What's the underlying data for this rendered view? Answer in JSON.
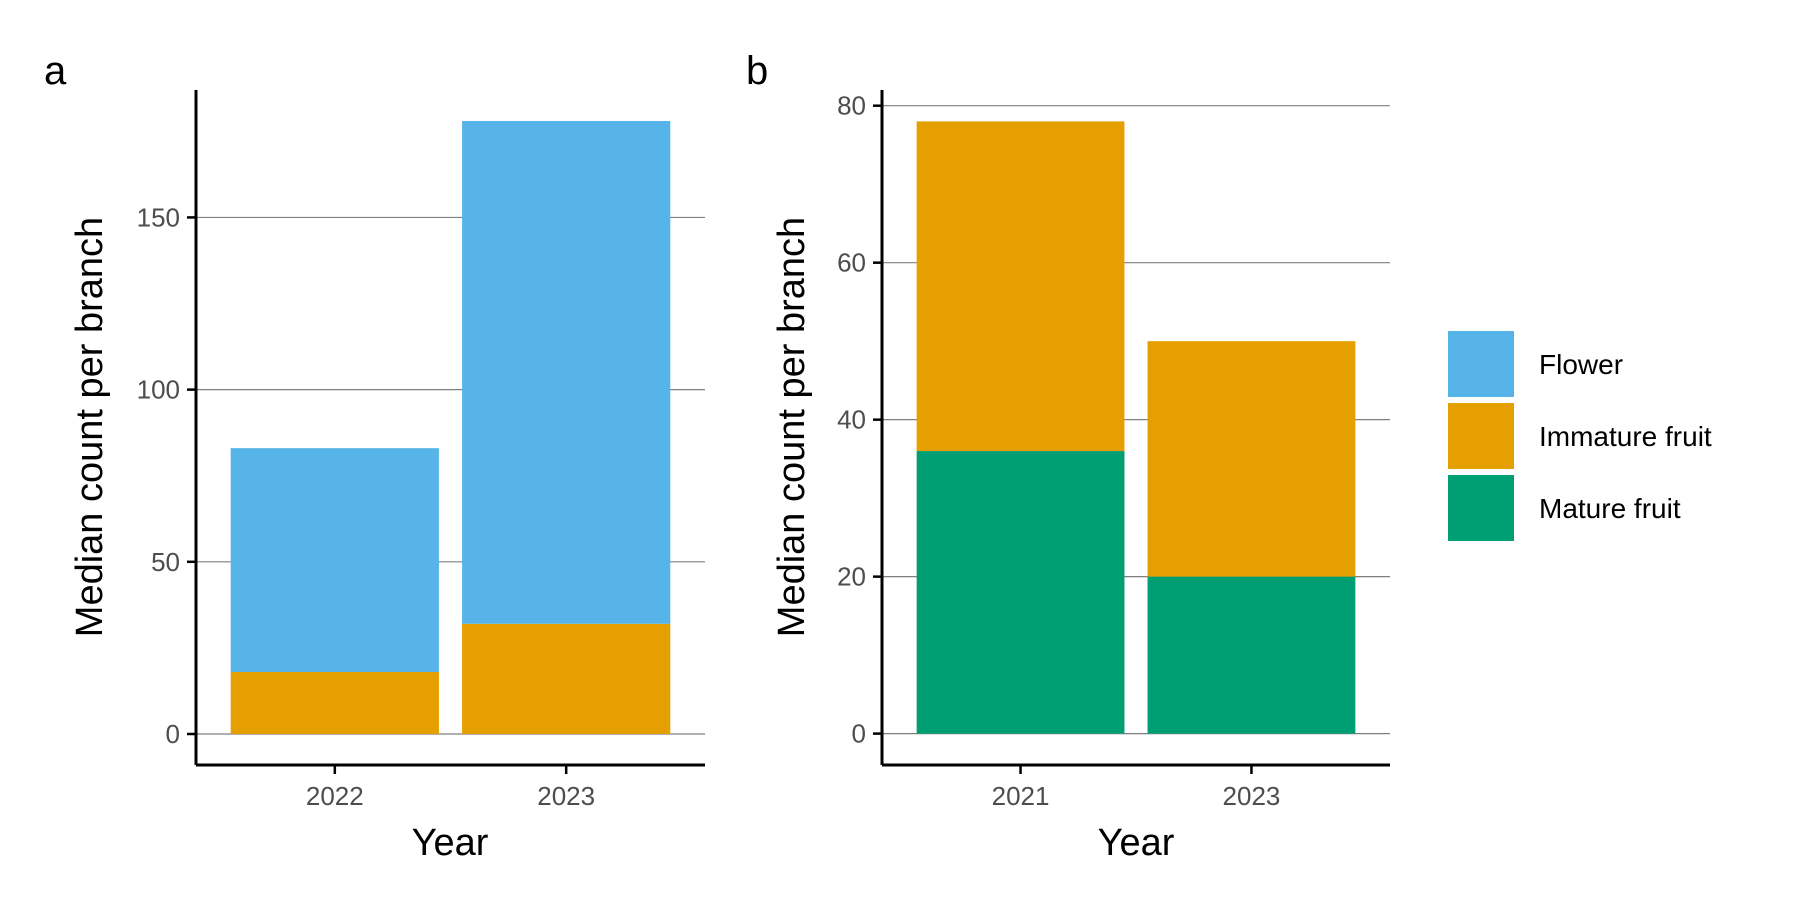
{
  "colors": {
    "Flower": "#56B4E9",
    "Immature fruit": "#E69F00",
    "Mature fruit": "#009E73"
  },
  "legend": {
    "items": [
      "Flower",
      "Immature fruit",
      "Mature fruit"
    ]
  },
  "chart_data": [
    {
      "panel": "a",
      "type": "bar",
      "stacked": true,
      "xlabel": "Year",
      "ylabel": "Median count per branch",
      "categories": [
        "2022",
        "2023"
      ],
      "ylim": [
        -9,
        187
      ],
      "yticks": [
        0,
        50,
        100,
        150
      ],
      "grid": true,
      "series": [
        {
          "name": "Immature fruit",
          "values": [
            18,
            32
          ]
        },
        {
          "name": "Flower",
          "values": [
            65,
            146
          ]
        }
      ]
    },
    {
      "panel": "b",
      "type": "bar",
      "stacked": true,
      "xlabel": "Year",
      "ylabel": "Median count per branch",
      "categories": [
        "2021",
        "2023"
      ],
      "ylim": [
        -4,
        82
      ],
      "yticks": [
        0,
        20,
        40,
        60,
        80
      ],
      "grid": true,
      "series": [
        {
          "name": "Mature fruit",
          "values": [
            36,
            20
          ]
        },
        {
          "name": "Immature fruit",
          "values": [
            42,
            30
          ]
        }
      ]
    }
  ]
}
